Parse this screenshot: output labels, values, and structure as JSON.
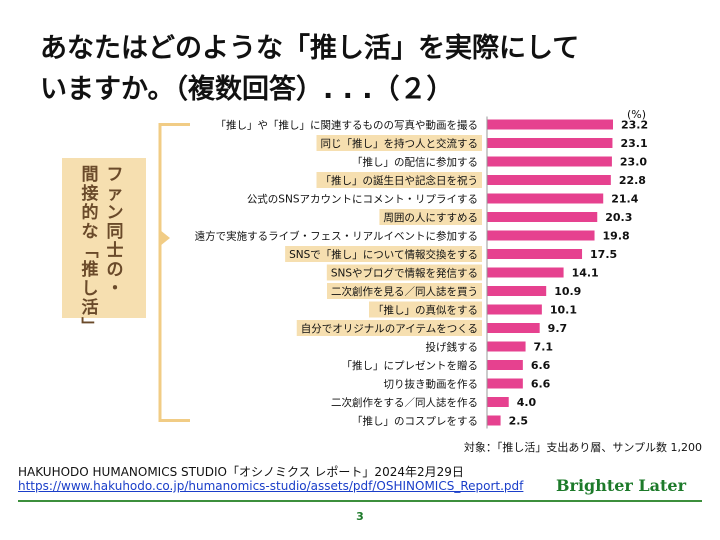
{
  "slide": {
    "title_line1": "あなたはどのような「推し活」を実際にして",
    "title_line2": "いますか。（複数回答）. . .（２）",
    "page_number": "3",
    "source_text": "HAKUHODO HUMANOMICS STUDIO「オシノミクス レポート」2024年2月29日",
    "source_url": "https://www.hakuhodo.co.jp/humanomics-studio/assets/pdf/OSHINOMICS_Report.pdf",
    "brand": "Brighter Later"
  },
  "colors": {
    "bar": "#e6418f",
    "highlight": "#f6dfb0",
    "bracket": "#f1cc85",
    "group_box": "#f6dfb0",
    "group_text": "#6a4a2a",
    "brand": "#1d7a2a"
  },
  "chart_data": {
    "type": "bar",
    "orientation": "horizontal",
    "unit": "(%)",
    "note": "対象：「推し活」支出あり層、サンプル数 1,200",
    "group_label": "ファン同士の・間接的な「推し活」",
    "categories": [
      "「推し」や「推し」に関連するものの写真や動画を撮る",
      "同じ「推し」を持つ人と交流する",
      "「推し」の配信に参加する",
      "「推し」の誕生日や記念日を祝う",
      "公式のSNSアカウントにコメント・リプライする",
      "周囲の人にすすめる",
      "遠方で実施するライブ・フェス・リアルイベントに参加する",
      "SNSで「推し」について情報交換をする",
      "SNSやブログで情報を発信する",
      "二次創作を見る／同人誌を買う",
      "「推し」の真似をする",
      "自分でオリジナルのアイテムをつくる",
      "投げ銭する",
      "「推し」にプレゼントを贈る",
      "切り抜き動画を作る",
      "二次創作をする／同人誌を作る",
      "「推し」のコスプレをする"
    ],
    "values": [
      23.2,
      23.1,
      23.0,
      22.8,
      21.4,
      20.3,
      19.8,
      17.5,
      14.1,
      10.9,
      10.1,
      9.7,
      7.1,
      6.6,
      6.6,
      4.0,
      2.5
    ],
    "highlighted": [
      false,
      true,
      false,
      true,
      false,
      true,
      false,
      true,
      true,
      true,
      true,
      true,
      false,
      false,
      false,
      false,
      false
    ],
    "xlim": [
      0,
      23.2
    ]
  }
}
